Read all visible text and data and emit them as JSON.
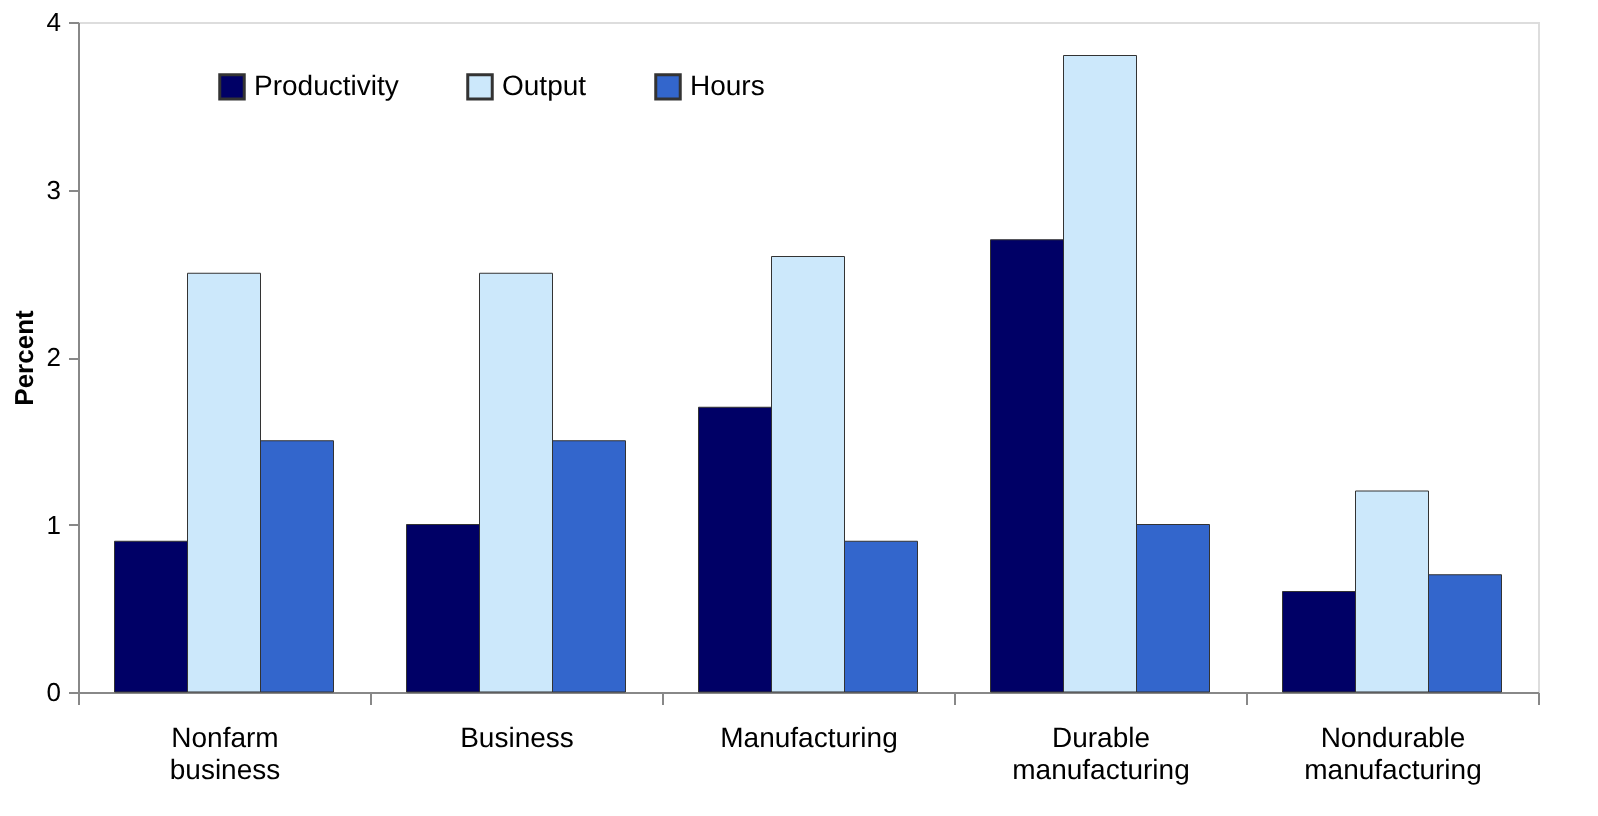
{
  "chart_data": {
    "type": "bar",
    "ylabel": "Percent",
    "categories": [
      "Nonfarm business",
      "Business",
      "Manufacturing",
      "Durable manufacturing",
      "Nondurable manufacturing"
    ],
    "series": [
      {
        "name": "Productivity",
        "color": "#000066",
        "values": [
          0.9,
          1.0,
          1.7,
          2.7,
          0.6
        ]
      },
      {
        "name": "Output",
        "color": "#cce8fb",
        "values": [
          2.5,
          2.5,
          2.6,
          3.8,
          1.2
        ]
      },
      {
        "name": "Hours",
        "color": "#3366cc",
        "values": [
          1.5,
          1.5,
          0.9,
          1.0,
          0.7
        ]
      }
    ],
    "ylim": [
      0,
      4
    ],
    "yticks": [
      0,
      1,
      2,
      3,
      4
    ],
    "grid": false,
    "legend": "top left"
  }
}
